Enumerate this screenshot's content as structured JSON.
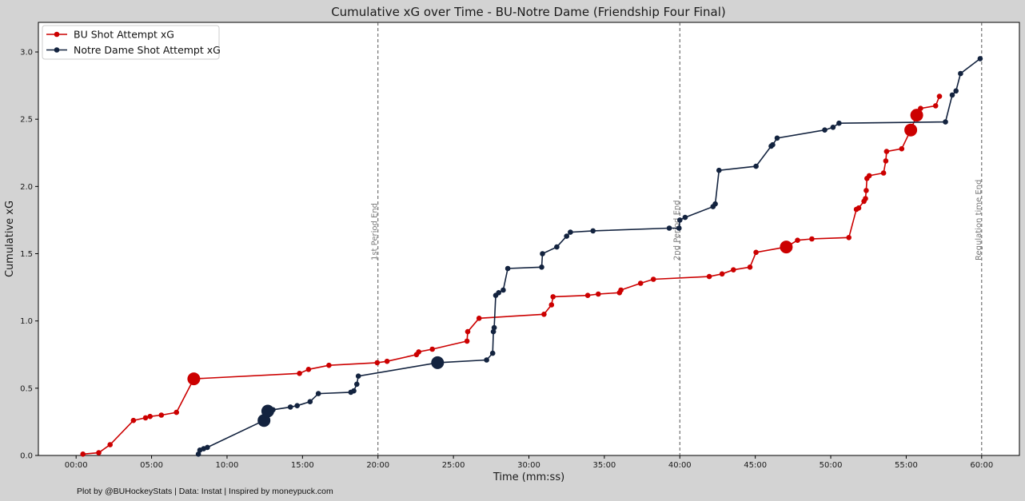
{
  "chart_data": {
    "type": "line",
    "title": "Cumulative xG over Time - BU-Notre Dame (Friendship Four Final)",
    "xlabel": "Time (mm:ss)",
    "ylabel": "Cumulative xG",
    "xlim": [
      -2.5,
      62.5
    ],
    "ylim": [
      0,
      3.22
    ],
    "xticks": [
      0,
      5,
      10,
      15,
      20,
      25,
      30,
      35,
      40,
      45,
      50,
      55,
      60
    ],
    "xtick_labels": [
      "00:00",
      "05:00",
      "10:00",
      "15:00",
      "20:00",
      "25:00",
      "30:00",
      "35:00",
      "40:00",
      "45:00",
      "50:00",
      "55:00",
      "60:00"
    ],
    "yticks": [
      0,
      0.5,
      1.0,
      1.5,
      2.0,
      2.5,
      3.0
    ],
    "ytick_labels": [
      "0.0",
      "0.5",
      "1.0",
      "1.5",
      "2.0",
      "2.5",
      "3.0"
    ],
    "grid": false,
    "legend_position": "top-left",
    "vlines": [
      {
        "x": 20,
        "label": "1st Period End"
      },
      {
        "x": 40,
        "label": "2nd Period End"
      },
      {
        "x": 60,
        "label": "Regulation time End"
      }
    ],
    "series": [
      {
        "name": "BU Shot Attempt xG",
        "color": "#cc0000",
        "x": [
          0.45,
          1.5,
          2.25,
          3.8,
          4.6,
          4.9,
          5.65,
          6.65,
          7.8,
          14.8,
          15.4,
          16.75,
          19.95,
          20.6,
          22.55,
          22.7,
          23.6,
          25.9,
          25.95,
          26.7,
          31.0,
          31.5,
          31.6,
          33.9,
          34.6,
          36.0,
          36.1,
          37.4,
          38.25,
          41.95,
          42.8,
          43.55,
          44.65,
          45.05,
          47.05,
          47.8,
          48.75,
          51.2,
          51.7,
          51.85,
          52.2,
          52.3,
          52.35,
          52.4,
          52.55,
          53.5,
          53.65,
          53.7,
          54.7,
          55.3,
          55.7,
          55.95,
          56.95,
          57.2
        ],
        "y": [
          0.01,
          0.02,
          0.08,
          0.26,
          0.28,
          0.29,
          0.3,
          0.32,
          0.57,
          0.61,
          0.64,
          0.67,
          0.69,
          0.7,
          0.75,
          0.77,
          0.79,
          0.85,
          0.92,
          1.02,
          1.05,
          1.12,
          1.18,
          1.19,
          1.2,
          1.21,
          1.23,
          1.28,
          1.31,
          1.33,
          1.35,
          1.38,
          1.4,
          1.51,
          1.55,
          1.6,
          1.61,
          1.62,
          1.83,
          1.84,
          1.89,
          1.91,
          1.97,
          2.06,
          2.08,
          2.1,
          2.19,
          2.26,
          2.28,
          2.42,
          2.53,
          2.58,
          2.6,
          2.67
        ],
        "goals_x": [
          7.8,
          47.05,
          55.3,
          55.7
        ]
      },
      {
        "name": "Notre Dame Shot Attempt xG",
        "color": "#13233f",
        "x": [
          8.1,
          8.2,
          8.45,
          8.7,
          12.45,
          12.7,
          13.05,
          14.2,
          14.65,
          15.5,
          16.05,
          18.2,
          18.4,
          18.6,
          18.7,
          23.95,
          27.2,
          27.6,
          27.65,
          27.7,
          27.8,
          28.0,
          28.3,
          28.6,
          30.85,
          30.9,
          31.85,
          32.5,
          32.75,
          34.25,
          39.3,
          39.95,
          40.0,
          40.35,
          42.2,
          42.35,
          42.6,
          45.05,
          46.05,
          46.15,
          46.45,
          49.6,
          50.15,
          50.55,
          57.6,
          58.05,
          58.3,
          58.6,
          59.9
        ],
        "y": [
          0.01,
          0.04,
          0.05,
          0.06,
          0.26,
          0.33,
          0.34,
          0.36,
          0.37,
          0.4,
          0.46,
          0.47,
          0.48,
          0.53,
          0.59,
          0.69,
          0.71,
          0.76,
          0.92,
          0.95,
          1.19,
          1.21,
          1.23,
          1.39,
          1.4,
          1.5,
          1.55,
          1.63,
          1.66,
          1.67,
          1.69,
          1.69,
          1.75,
          1.77,
          1.85,
          1.87,
          2.12,
          2.15,
          2.3,
          2.31,
          2.36,
          2.42,
          2.44,
          2.47,
          2.48,
          2.68,
          2.71,
          2.84,
          2.95
        ],
        "goals_x": [
          12.45,
          12.7,
          23.95
        ]
      }
    ]
  },
  "footer": "Plot by @BUHockeyStats | Data: Instat | Inspired by moneypuck.com"
}
